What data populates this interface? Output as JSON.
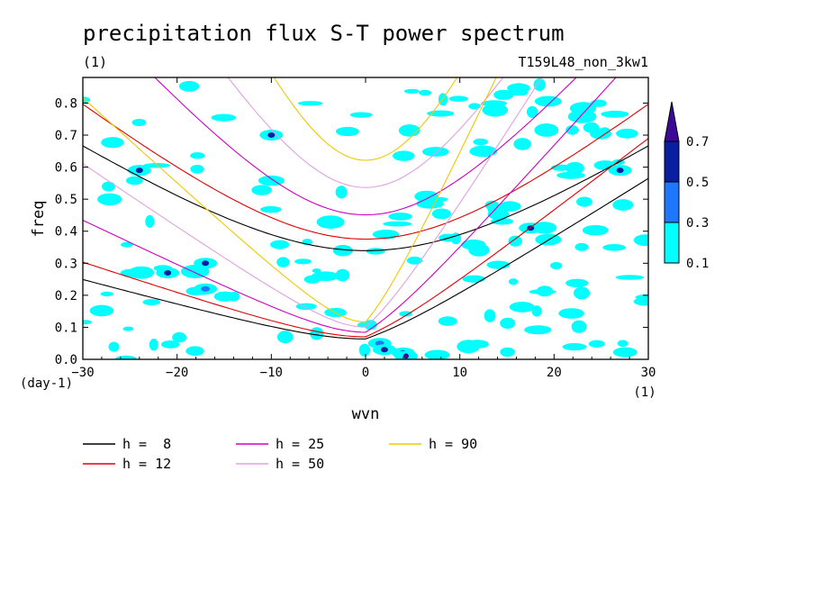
{
  "chart_data": {
    "type": "heatmap",
    "title": "precipitation flux S-T power spectrum",
    "unit_left": "(1)",
    "run_label": "T159L48_non_3kw1",
    "xlabel": "wvn",
    "ylabel": "freq",
    "x_unit": "(1)",
    "y_unit": "(day-1)",
    "xlim": [
      -30,
      30
    ],
    "ylim": [
      0,
      0.88
    ],
    "xticks": [
      -30,
      -20,
      -10,
      0,
      10,
      20,
      30
    ],
    "yticks": [
      0.0,
      0.1,
      0.2,
      0.3,
      0.4,
      0.5,
      0.6,
      0.7,
      0.8
    ],
    "colorbar": {
      "levels": [
        0.1,
        0.3,
        0.5,
        0.7
      ],
      "level_labels": [
        "0.1",
        "0.3",
        "0.5",
        "0.7"
      ],
      "colors": [
        "#00ffff",
        "#1e78ff",
        "#0a1ea0",
        "#3c0a96"
      ]
    },
    "dispersion_curves": [
      {
        "name": "h =  8",
        "h": 8,
        "color": "#000000"
      },
      {
        "name": "h = 12",
        "h": 12,
        "color": "#e00000"
      },
      {
        "name": "h = 25",
        "h": 25,
        "color": "#d000c0"
      },
      {
        "name": "h = 50",
        "h": 50,
        "color": "#e0a0e0"
      },
      {
        "name": "h = 90",
        "h": 90,
        "color": "#f0c800"
      }
    ],
    "high_power_blobs": [
      {
        "x": -24,
        "y": 0.59,
        "level": 0.5
      },
      {
        "x": -17,
        "y": 0.3,
        "level": 0.5
      },
      {
        "x": -10,
        "y": 0.7,
        "level": 0.5
      },
      {
        "x": -21,
        "y": 0.27,
        "level": 0.5
      },
      {
        "x": -17,
        "y": 0.22,
        "level": 0.3
      },
      {
        "x": 17.5,
        "y": 0.41,
        "level": 0.5
      },
      {
        "x": 27,
        "y": 0.59,
        "level": 0.5
      },
      {
        "x": 1.5,
        "y": 0.05,
        "level": 0.3
      },
      {
        "x": 2,
        "y": 0.03,
        "level": 0.5
      },
      {
        "x": 4,
        "y": 0.02,
        "level": 0.5
      },
      {
        "x": 4.3,
        "y": 0.01,
        "level": 0.7
      }
    ]
  }
}
